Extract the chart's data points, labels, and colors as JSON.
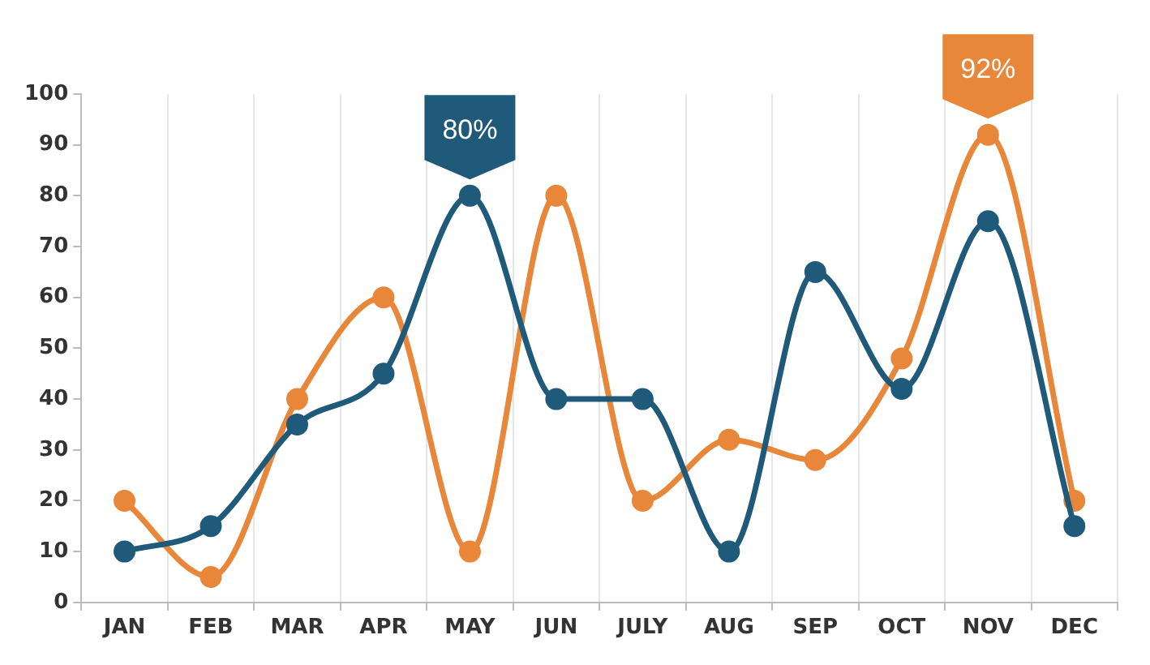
{
  "chart_data": {
    "type": "line",
    "categories": [
      "JAN",
      "FEB",
      "MAR",
      "APR",
      "MAY",
      "JUN",
      "JULY",
      "AUG",
      "SEP",
      "OCT",
      "NOV",
      "DEC"
    ],
    "series": [
      {
        "color": "#1f5a7a",
        "values": [
          10,
          15,
          35,
          45,
          80,
          40,
          40,
          10,
          65,
          42,
          75,
          15
        ]
      },
      {
        "color": "#e8873a",
        "values": [
          20,
          5,
          40,
          60,
          10,
          80,
          20,
          32,
          28,
          48,
          92,
          20
        ]
      }
    ],
    "ylim": [
      0,
      100
    ],
    "yticks": [
      0,
      10,
      20,
      30,
      40,
      50,
      60,
      70,
      80,
      90,
      100
    ],
    "grid": "x",
    "legend": false,
    "marker": "circle",
    "line_style": "solid",
    "annotations": [
      {
        "text": "80%",
        "x": "MAY",
        "y": 80
      },
      {
        "text": "92%",
        "x": "NOV",
        "y": 92
      }
    ]
  }
}
